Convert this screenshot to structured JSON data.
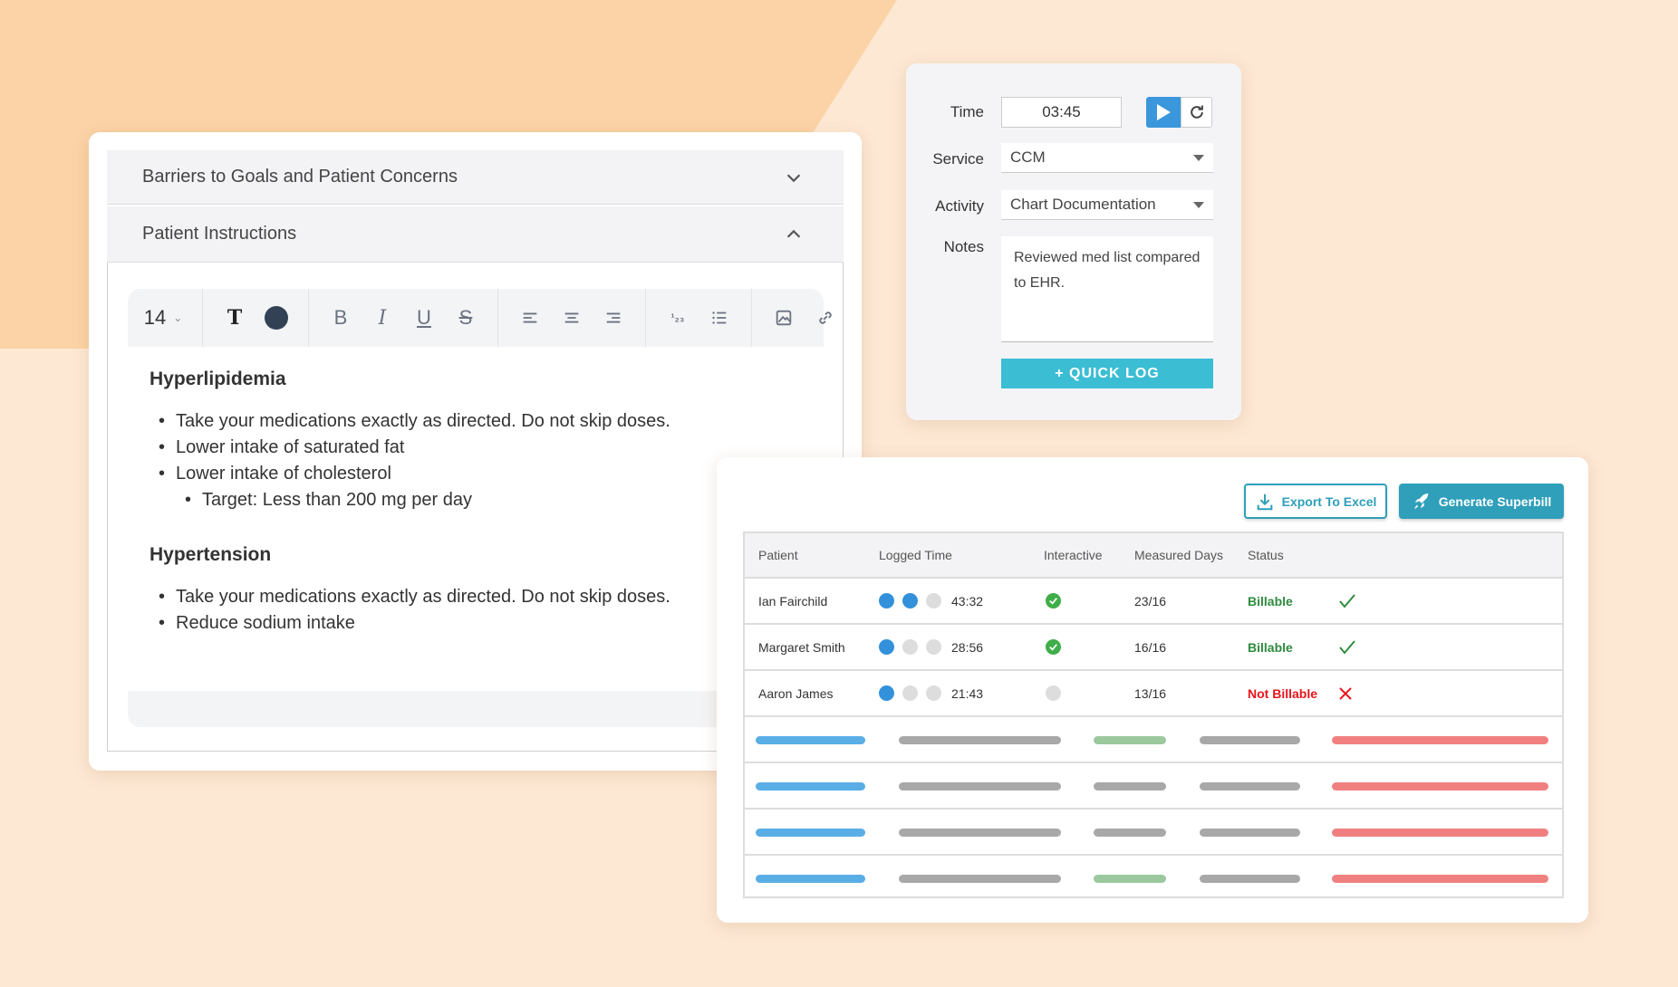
{
  "colors": {
    "accent_blue": "#3a97dc",
    "quick_log": "#3bbdd4",
    "superbill": "#2f9fba",
    "billable": "#2e8b3e",
    "not_billable": "#e8141b",
    "bg_light": "#fde8d4",
    "bg_dark": "#fbd3a6"
  },
  "editor": {
    "sections": [
      {
        "title": "Barriers to Goals and Patient Concerns",
        "icon": "chevron-down-icon"
      },
      {
        "title": "Patient Instructions",
        "icon": "chevron-up-icon"
      }
    ],
    "toolbar": {
      "font_size": "14",
      "text_color": "#334155",
      "icons": [
        "text-icon",
        "color-icon",
        "bold-icon",
        "italic-icon",
        "underline-icon",
        "strikethrough-icon",
        "align-left-icon",
        "align-center-icon",
        "align-right-icon",
        "ordered-list-icon",
        "bullet-list-icon",
        "image-icon",
        "link-icon"
      ]
    },
    "content": [
      {
        "heading": "Hyperlipidemia",
        "items": [
          "Take your medications exactly as directed. Do not skip doses.",
          "Lower intake of saturated fat",
          "Lower intake of cholesterol"
        ],
        "subitems": [
          "Target: Less than 200 mg per day"
        ]
      },
      {
        "heading": "Hypertension",
        "items": [
          "Take your medications exactly as directed. Do not skip doses.",
          "Reduce sodium intake"
        ]
      }
    ]
  },
  "timer": {
    "time_label": "Time",
    "time_value": "03:45",
    "service_label": "Service",
    "service_value": "CCM",
    "activity_label": "Activity",
    "activity_value": "Chart Documentation",
    "notes_label": "Notes",
    "notes_value": "Reviewed med list compared to EHR.",
    "quick_log_label": "+ QUICK LOG"
  },
  "table": {
    "export_label": "Export To Excel",
    "superbill_label": "Generate Superbill",
    "columns": [
      "Patient",
      "Logged Time",
      "Interactive",
      "Measured Days",
      "Status"
    ],
    "rows": [
      {
        "patient": "Ian Fairchild",
        "dots": 2,
        "time": "43:32",
        "interactive": true,
        "days": "23/16",
        "status": "Billable",
        "billable": true
      },
      {
        "patient": "Margaret Smith",
        "dots": 1,
        "time": "28:56",
        "interactive": true,
        "days": "16/16",
        "status": "Billable",
        "billable": true
      },
      {
        "patient": "Aaron James",
        "dots": 1,
        "time": "21:43",
        "interactive": false,
        "days": "13/16",
        "status": "Not Billable",
        "billable": false
      }
    ],
    "placeholder_rows": [
      {
        "interactive_green": true
      },
      {
        "interactive_green": false
      },
      {
        "interactive_green": false
      },
      {
        "interactive_green": true
      }
    ]
  }
}
